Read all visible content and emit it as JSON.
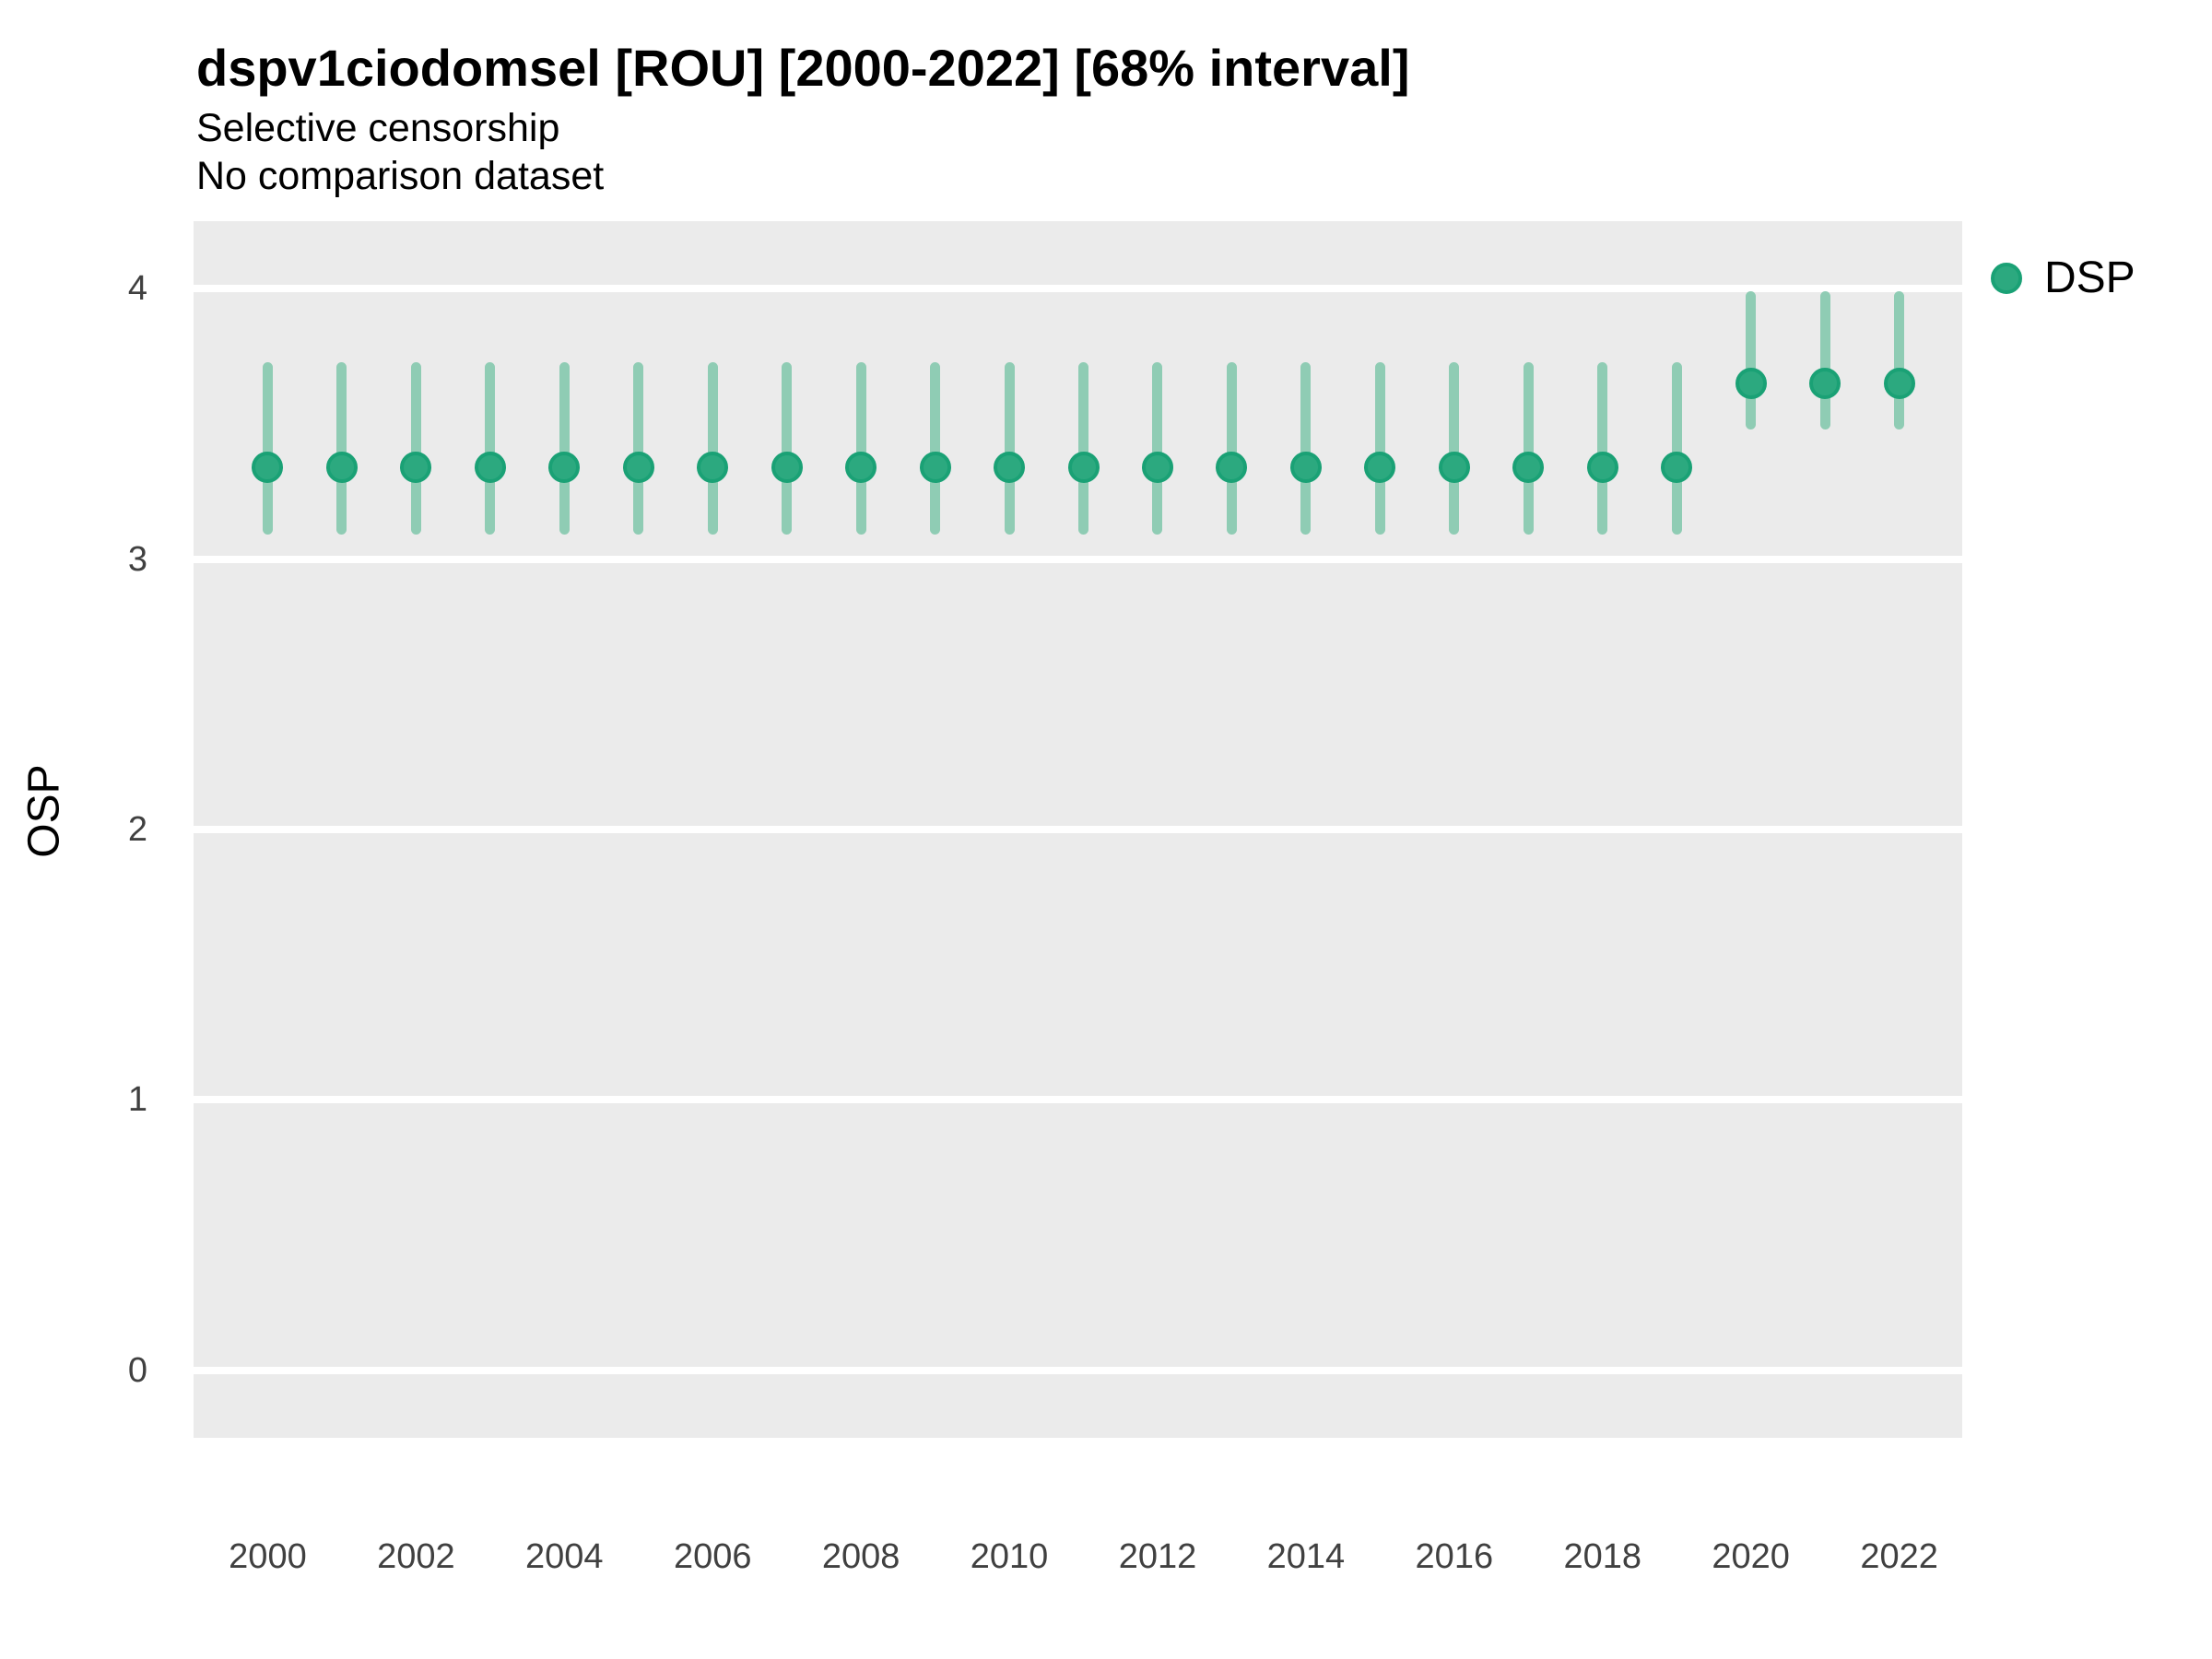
{
  "title": "dspv1ciodomsel [ROU] [2000-2022] [68% interval]",
  "subtitle": "Selective censorship",
  "note": "No comparison dataset",
  "legend": {
    "items": [
      {
        "label": "DSP",
        "color": "#2CA97F",
        "ring_color": "#1AA175"
      }
    ]
  },
  "colors": {
    "point": "#2CA97F",
    "point_ring": "#1AA175",
    "interval": "#8FCCB4",
    "panel_background": "#EBEBEB",
    "gridline": "#FFFFFF",
    "tick_text": "#404040",
    "text": "#000000"
  },
  "chart_data": {
    "type": "scatter",
    "title": "dspv1ciodomsel [ROU] [2000-2022] [68% interval]",
    "subtitle": "Selective censorship",
    "note": "No comparison dataset",
    "xlabel": "",
    "ylabel": "OSP",
    "interval": "68%",
    "legend_position": "right",
    "grid": "horizontal-only",
    "x_ticks": [
      2000,
      2002,
      2004,
      2006,
      2008,
      2010,
      2012,
      2014,
      2016,
      2018,
      2020,
      2022
    ],
    "y_ticks": [
      0,
      1,
      2,
      3,
      4
    ],
    "xlim": [
      1999.0,
      2022.85
    ],
    "ylim": [
      -0.25,
      4.25
    ],
    "series": [
      {
        "name": "DSP",
        "points": [
          {
            "year": 2000,
            "value": 3.34,
            "lo": 3.09,
            "hi": 3.73
          },
          {
            "year": 2001,
            "value": 3.34,
            "lo": 3.09,
            "hi": 3.73
          },
          {
            "year": 2002,
            "value": 3.34,
            "lo": 3.09,
            "hi": 3.73
          },
          {
            "year": 2003,
            "value": 3.34,
            "lo": 3.09,
            "hi": 3.73
          },
          {
            "year": 2004,
            "value": 3.34,
            "lo": 3.09,
            "hi": 3.73
          },
          {
            "year": 2005,
            "value": 3.34,
            "lo": 3.09,
            "hi": 3.73
          },
          {
            "year": 2006,
            "value": 3.34,
            "lo": 3.09,
            "hi": 3.73
          },
          {
            "year": 2007,
            "value": 3.34,
            "lo": 3.09,
            "hi": 3.73
          },
          {
            "year": 2008,
            "value": 3.34,
            "lo": 3.09,
            "hi": 3.73
          },
          {
            "year": 2009,
            "value": 3.34,
            "lo": 3.09,
            "hi": 3.73
          },
          {
            "year": 2010,
            "value": 3.34,
            "lo": 3.09,
            "hi": 3.73
          },
          {
            "year": 2011,
            "value": 3.34,
            "lo": 3.09,
            "hi": 3.73
          },
          {
            "year": 2012,
            "value": 3.34,
            "lo": 3.09,
            "hi": 3.73
          },
          {
            "year": 2013,
            "value": 3.34,
            "lo": 3.09,
            "hi": 3.73
          },
          {
            "year": 2014,
            "value": 3.34,
            "lo": 3.09,
            "hi": 3.73
          },
          {
            "year": 2015,
            "value": 3.34,
            "lo": 3.09,
            "hi": 3.73
          },
          {
            "year": 2016,
            "value": 3.34,
            "lo": 3.09,
            "hi": 3.73
          },
          {
            "year": 2017,
            "value": 3.34,
            "lo": 3.09,
            "hi": 3.73
          },
          {
            "year": 2018,
            "value": 3.34,
            "lo": 3.09,
            "hi": 3.73
          },
          {
            "year": 2019,
            "value": 3.34,
            "lo": 3.09,
            "hi": 3.73
          },
          {
            "year": 2020,
            "value": 3.65,
            "lo": 3.48,
            "hi": 3.99
          },
          {
            "year": 2021,
            "value": 3.65,
            "lo": 3.48,
            "hi": 3.99
          },
          {
            "year": 2022,
            "value": 3.65,
            "lo": 3.48,
            "hi": 3.99
          }
        ]
      }
    ]
  }
}
